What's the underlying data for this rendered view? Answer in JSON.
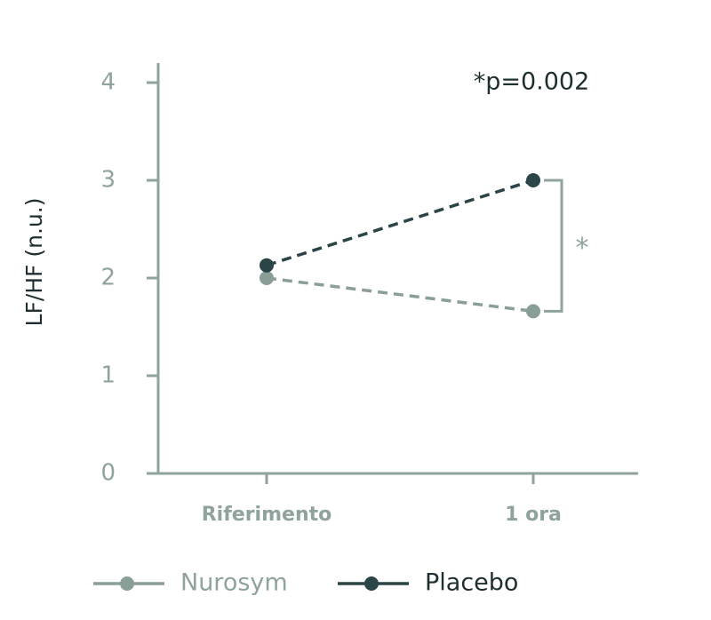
{
  "chart_data": {
    "type": "line",
    "y_label": "LF/HF (n.u.)",
    "annotations": [
      "*p=0.002",
      "*"
    ],
    "categories": [
      "Riferimento",
      "1 ora"
    ],
    "series": [
      {
        "name": "Nurosym",
        "color": "#8a9e98",
        "values": [
          2.0,
          1.66
        ]
      },
      {
        "name": "Placebo",
        "color": "#2b4446",
        "values": [
          2.13,
          3.0
        ]
      }
    ],
    "ylim": [
      0,
      4
    ],
    "yticks": [
      0,
      1,
      2,
      3,
      4
    ],
    "axis_color": "#8fa39c"
  }
}
